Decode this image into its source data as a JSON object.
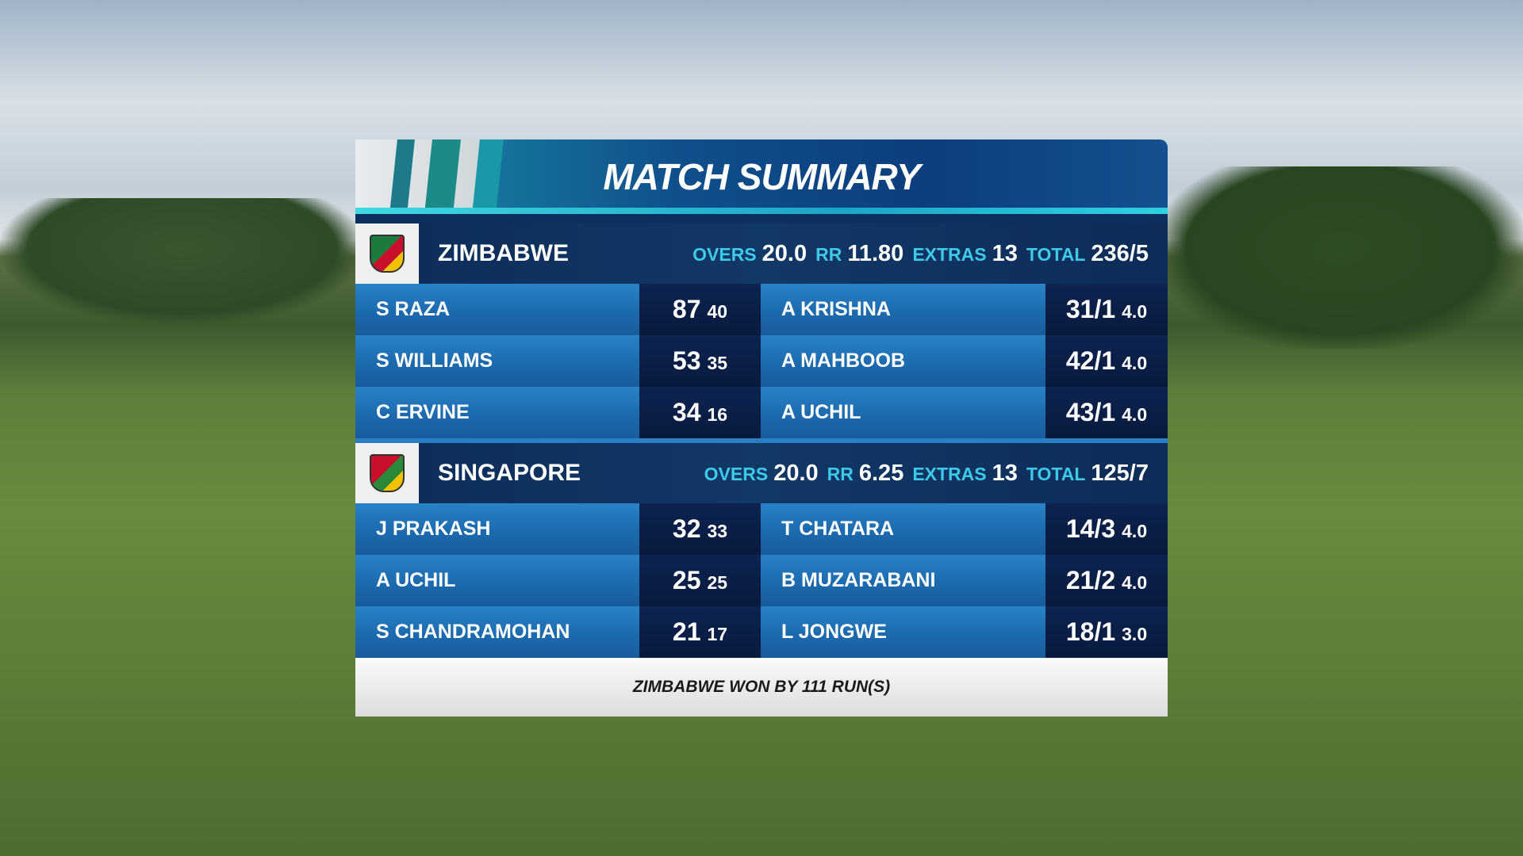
{
  "header": {
    "title": "MATCH SUMMARY"
  },
  "innings": [
    {
      "team": "ZIMBABWE",
      "overs_label": "OVERS",
      "overs": "20.0",
      "rr_label": "RR",
      "rr": "11.80",
      "extras_label": "EXTRAS",
      "extras": "13",
      "total_label": "TOTAL",
      "total": "236/5",
      "batters": [
        {
          "name": "S RAZA",
          "runs": "87",
          "balls": "40"
        },
        {
          "name": "S WILLIAMS",
          "runs": "53",
          "balls": "35"
        },
        {
          "name": "C ERVINE",
          "runs": "34",
          "balls": "16"
        }
      ],
      "bowlers": [
        {
          "name": "A KRISHNA",
          "figures": "31/1",
          "overs": "4.0"
        },
        {
          "name": "A MAHBOOB",
          "figures": "42/1",
          "overs": "4.0"
        },
        {
          "name": "A UCHIL",
          "figures": "43/1",
          "overs": "4.0"
        }
      ]
    },
    {
      "team": "SINGAPORE",
      "overs_label": "OVERS",
      "overs": "20.0",
      "rr_label": "RR",
      "rr": "6.25",
      "extras_label": "EXTRAS",
      "extras": "13",
      "total_label": "TOTAL",
      "total": "125/7",
      "batters": [
        {
          "name": "J PRAKASH",
          "runs": "32",
          "balls": "33"
        },
        {
          "name": "A UCHIL",
          "runs": "25",
          "balls": "25"
        },
        {
          "name": "S CHANDRAMOHAN",
          "runs": "21",
          "balls": "17"
        }
      ],
      "bowlers": [
        {
          "name": "T CHATARA",
          "figures": "14/3",
          "overs": "4.0"
        },
        {
          "name": "B MUZARABANI",
          "figures": "21/2",
          "overs": "4.0"
        },
        {
          "name": "L JONGWE",
          "figures": "18/1",
          "overs": "3.0"
        }
      ]
    }
  ],
  "result": "ZIMBABWE WON BY 111 RUN(S)"
}
